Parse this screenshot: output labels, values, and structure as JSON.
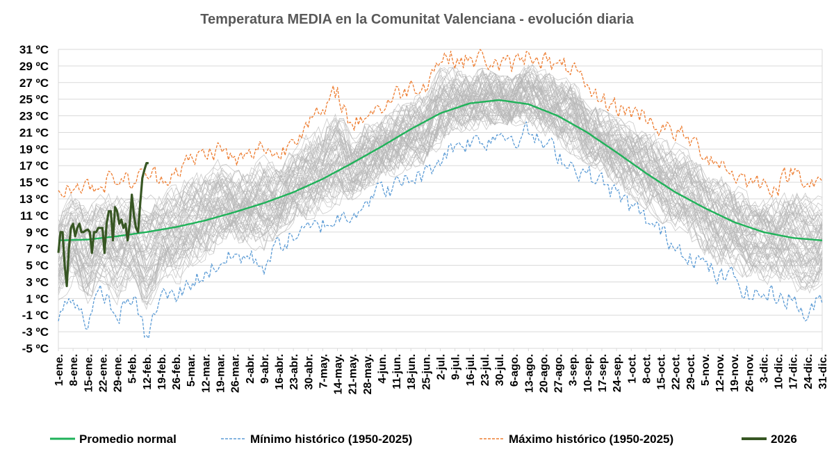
{
  "chart_data": {
    "type": "line",
    "title": "Temperatura MEDIA en la Comunitat Valenciana - evolución diaria",
    "xlabel": "",
    "ylabel": "",
    "ylim": [
      -5,
      31
    ],
    "yticks": [
      "-5 ºC",
      "-3 ºC",
      "-1 ºC",
      "1 ºC",
      "3 ºC",
      "5 ºC",
      "7 ºC",
      "9 ºC",
      "11 ºC",
      "13 ºC",
      "15 ºC",
      "17 ºC",
      "19 ºC",
      "21 ºC",
      "23 ºC",
      "25 ºC",
      "27 ºC",
      "29 ºC",
      "31 ºC"
    ],
    "grid": true,
    "legend_position": "bottom",
    "x_day_of_year_range": [
      1,
      365
    ],
    "xticks": [
      {
        "day": 1,
        "label": "1-ene."
      },
      {
        "day": 8,
        "label": "8-ene."
      },
      {
        "day": 15,
        "label": "15-ene."
      },
      {
        "day": 22,
        "label": "22-ene."
      },
      {
        "day": 29,
        "label": "29-ene."
      },
      {
        "day": 36,
        "label": "5-feb."
      },
      {
        "day": 43,
        "label": "12-feb."
      },
      {
        "day": 50,
        "label": "19-feb."
      },
      {
        "day": 57,
        "label": "26-feb."
      },
      {
        "day": 64,
        "label": "5-mar."
      },
      {
        "day": 71,
        "label": "12-mar."
      },
      {
        "day": 78,
        "label": "19-mar."
      },
      {
        "day": 85,
        "label": "26-mar."
      },
      {
        "day": 92,
        "label": "2-abr."
      },
      {
        "day": 99,
        "label": "9-abr."
      },
      {
        "day": 106,
        "label": "16-abr."
      },
      {
        "day": 113,
        "label": "23-abr."
      },
      {
        "day": 120,
        "label": "30-abr."
      },
      {
        "day": 127,
        "label": "7-may."
      },
      {
        "day": 134,
        "label": "14-may."
      },
      {
        "day": 141,
        "label": "21-may."
      },
      {
        "day": 148,
        "label": "28-may."
      },
      {
        "day": 155,
        "label": "4-jun."
      },
      {
        "day": 162,
        "label": "11-jun."
      },
      {
        "day": 169,
        "label": "18-jun."
      },
      {
        "day": 176,
        "label": "25-jun."
      },
      {
        "day": 183,
        "label": "2-jul."
      },
      {
        "day": 190,
        "label": "9-jul."
      },
      {
        "day": 197,
        "label": "16-jul."
      },
      {
        "day": 204,
        "label": "23-jul."
      },
      {
        "day": 211,
        "label": "30-jul."
      },
      {
        "day": 218,
        "label": "6-ago."
      },
      {
        "day": 225,
        "label": "13-ago."
      },
      {
        "day": 232,
        "label": "20-ago."
      },
      {
        "day": 239,
        "label": "27-ago."
      },
      {
        "day": 246,
        "label": "3-sep."
      },
      {
        "day": 253,
        "label": "10-sep."
      },
      {
        "day": 260,
        "label": "17-sep."
      },
      {
        "day": 267,
        "label": "24-sep."
      },
      {
        "day": 274,
        "label": "1-oct."
      },
      {
        "day": 281,
        "label": "8-oct."
      },
      {
        "day": 288,
        "label": "15-oct."
      },
      {
        "day": 295,
        "label": "22-oct."
      },
      {
        "day": 302,
        "label": "29-oct."
      },
      {
        "day": 309,
        "label": "5-nov."
      },
      {
        "day": 316,
        "label": "12-nov."
      },
      {
        "day": 323,
        "label": "19-nov."
      },
      {
        "day": 330,
        "label": "26-nov."
      },
      {
        "day": 337,
        "label": "3-dic."
      },
      {
        "day": 344,
        "label": "10-dic."
      },
      {
        "day": 351,
        "label": "17-dic."
      },
      {
        "day": 358,
        "label": "24-dic."
      },
      {
        "day": 365,
        "label": "31-dic."
      }
    ],
    "series": [
      {
        "name": "Promedio normal",
        "color": "#1fb259",
        "style": "solid",
        "x_day": [
          1,
          15,
          29,
          43,
          57,
          71,
          85,
          99,
          113,
          127,
          141,
          155,
          169,
          183,
          197,
          211,
          225,
          239,
          253,
          267,
          281,
          295,
          309,
          323,
          337,
          351,
          365
        ],
        "values": [
          8.0,
          8.1,
          8.5,
          9.0,
          9.6,
          10.4,
          11.4,
          12.5,
          13.8,
          15.4,
          17.3,
          19.3,
          21.4,
          23.3,
          24.5,
          24.9,
          24.4,
          23.0,
          21.0,
          18.6,
          16.1,
          13.8,
          11.9,
          10.2,
          9.0,
          8.3,
          8.0
        ]
      },
      {
        "name": "Mínimo histórico (1950-2025)",
        "color": "#5b9bd5",
        "style": "dashed",
        "x_day": [
          1,
          8,
          15,
          22,
          29,
          36,
          43,
          50,
          57,
          64,
          71,
          78,
          85,
          92,
          99,
          106,
          113,
          120,
          127,
          134,
          141,
          148,
          155,
          162,
          169,
          176,
          183,
          190,
          197,
          204,
          211,
          218,
          225,
          232,
          239,
          246,
          253,
          260,
          267,
          274,
          281,
          288,
          295,
          302,
          309,
          316,
          323,
          330,
          337,
          344,
          351,
          358,
          365
        ],
        "values": [
          -1.3,
          1.5,
          -2.0,
          2.0,
          -1.5,
          1.5,
          -4.0,
          1.5,
          1.0,
          3.0,
          4.0,
          5.5,
          6.0,
          6.0,
          5.0,
          7.5,
          8.5,
          9.0,
          10.0,
          10.5,
          11.5,
          13.0,
          14.0,
          14.5,
          15.5,
          16.0,
          18.0,
          19.5,
          20.0,
          20.0,
          21.0,
          20.5,
          21.0,
          19.5,
          18.5,
          17.0,
          16.0,
          15.0,
          13.5,
          12.0,
          10.5,
          9.0,
          7.5,
          6.5,
          5.0,
          3.5,
          3.5,
          1.5,
          1.5,
          1.5,
          1.0,
          -1.3,
          1.2
        ]
      },
      {
        "name": "Máximo histórico (1950-2025)",
        "color": "#ed7d31",
        "style": "dashed",
        "x_day": [
          1,
          8,
          15,
          22,
          29,
          36,
          43,
          50,
          57,
          64,
          71,
          78,
          85,
          92,
          99,
          106,
          113,
          120,
          127,
          134,
          141,
          148,
          155,
          162,
          169,
          176,
          183,
          190,
          197,
          204,
          211,
          218,
          225,
          232,
          239,
          246,
          253,
          260,
          267,
          274,
          281,
          288,
          295,
          302,
          309,
          316,
          323,
          330,
          337,
          344,
          351,
          358,
          365
        ],
        "values": [
          13.5,
          15.0,
          14.5,
          15.0,
          15.5,
          15.0,
          16.0,
          15.5,
          16.5,
          17.5,
          18.5,
          19.0,
          17.5,
          18.0,
          19.5,
          18.0,
          20.5,
          22.5,
          23.0,
          26.0,
          21.5,
          23.5,
          24.0,
          25.5,
          26.5,
          27.0,
          30.0,
          30.0,
          29.5,
          30.0,
          29.0,
          29.0,
          30.5,
          30.0,
          28.5,
          29.0,
          25.5,
          25.0,
          24.0,
          23.5,
          23.0,
          21.5,
          21.0,
          20.0,
          18.5,
          17.5,
          16.0,
          15.0,
          15.0,
          14.5,
          16.5,
          15.5,
          14.5
        ]
      },
      {
        "name": "2026",
        "color": "#375623",
        "style": "solid",
        "x_day": [
          1,
          2,
          3,
          4,
          5,
          6,
          7,
          8,
          9,
          10,
          11,
          12,
          13,
          14,
          15,
          16,
          17,
          18,
          19,
          20,
          21,
          22,
          23,
          24,
          25,
          26,
          27,
          28,
          29,
          30,
          31,
          32,
          33,
          34,
          35,
          36,
          37,
          38,
          39,
          40,
          41,
          42,
          43,
          44
        ],
        "values": [
          6.5,
          9.0,
          9.0,
          5.0,
          2.5,
          7.0,
          9.5,
          10.0,
          8.5,
          9.5,
          10.0,
          9.0,
          9.0,
          9.2,
          9.3,
          9.0,
          6.5,
          9.0,
          9.0,
          9.5,
          9.5,
          9.5,
          6.5,
          10.0,
          11.5,
          11.5,
          8.0,
          12.0,
          11.5,
          10.0,
          10.5,
          9.5,
          10.0,
          8.0,
          10.0,
          13.5,
          11.0,
          9.5,
          9.0,
          12.5,
          15.5,
          16.5,
          17.3,
          17.3
        ]
      }
    ],
    "background_band": {
      "description": "gray lines: individual years 1950-2025",
      "color": "#b7b7b7"
    }
  }
}
